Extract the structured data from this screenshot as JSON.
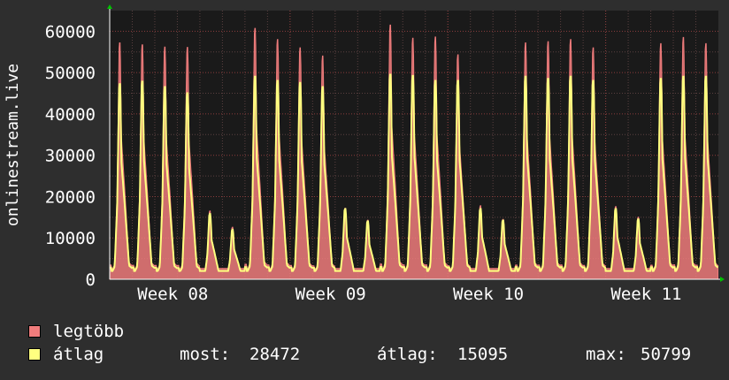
{
  "chart_data": {
    "type": "area",
    "ylabel": "onlinestream.live",
    "ylim": [
      0,
      65000
    ],
    "yticks": [
      0,
      10000,
      20000,
      30000,
      40000,
      50000,
      60000
    ],
    "xticks": [
      "Week 08",
      "Week 09",
      "Week 10",
      "Week 11"
    ],
    "grid": true,
    "legend_position": "bottom-left",
    "daily_peaks": {
      "max": [
        57200,
        56700,
        56200,
        56100,
        16500,
        12600,
        60700,
        58000,
        56000,
        54000,
        17200,
        14300,
        61500,
        58300,
        58600,
        54300,
        17800,
        14500,
        57200,
        57500,
        58000,
        56000,
        17600,
        15000,
        57000,
        58500,
        57000
      ],
      "avg": [
        47200,
        47800,
        46500,
        45000,
        15800,
        12000,
        49000,
        48000,
        47500,
        46500,
        17000,
        14000,
        49500,
        49200,
        48000,
        48000,
        17000,
        14200,
        49000,
        48500,
        49000,
        48000,
        17000,
        14500,
        48500,
        49000,
        49000
      ]
    },
    "series": [
      {
        "name": "legtöbb",
        "color": "#f07c7c"
      },
      {
        "name": "átlag",
        "color": "#ffff80"
      }
    ]
  },
  "legend": {
    "max_label": "legtöbb",
    "avg_label": "átlag",
    "now_label": "most:",
    "now_value": "28472",
    "mean_label": "átlag:",
    "mean_value": "15095",
    "peak_label": "max:",
    "peak_value": "50799"
  }
}
